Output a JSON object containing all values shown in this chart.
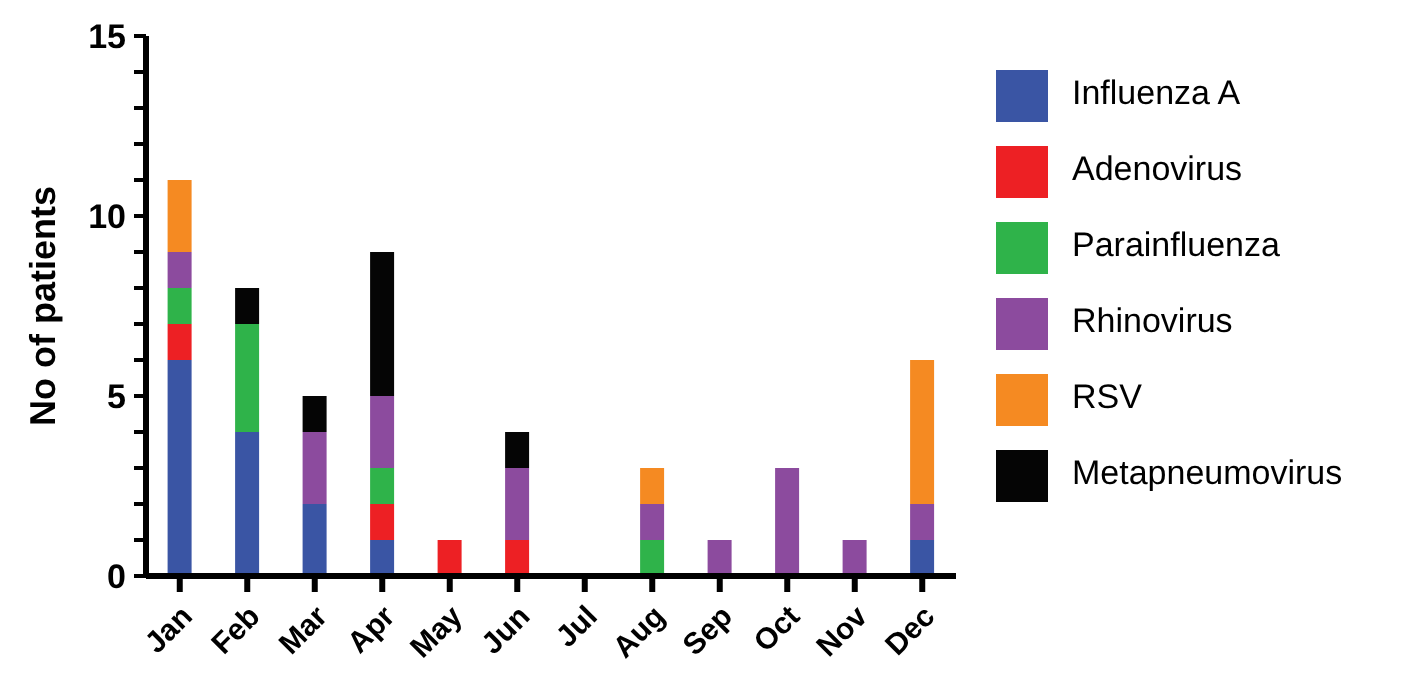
{
  "chart_data": {
    "type": "bar",
    "stacked": true,
    "ylabel": "No of patients",
    "categories": [
      "Jan",
      "Feb",
      "Mar",
      "Apr",
      "May",
      "Jun",
      "Jul",
      "Aug",
      "Sep",
      "Oct",
      "Nov",
      "Dec"
    ],
    "series": [
      {
        "name": "Influenza A",
        "color": "#3a55a4",
        "values": [
          6,
          4,
          2,
          1,
          0,
          0,
          0,
          0,
          0,
          0,
          0,
          1
        ]
      },
      {
        "name": "Adenovirus",
        "color": "#ed2024",
        "values": [
          1,
          0,
          0,
          1,
          1,
          1,
          0,
          0,
          0,
          0,
          0,
          0
        ]
      },
      {
        "name": "Parainfluenza",
        "color": "#2fb34a",
        "values": [
          1,
          3,
          0,
          1,
          0,
          0,
          0,
          1,
          0,
          0,
          0,
          0
        ]
      },
      {
        "name": "Rhinovirus",
        "color": "#8c4b9e",
        "values": [
          1,
          0,
          2,
          2,
          0,
          2,
          0,
          1,
          1,
          3,
          1,
          1
        ]
      },
      {
        "name": "RSV",
        "color": "#f58a22",
        "values": [
          2,
          0,
          0,
          0,
          0,
          0,
          0,
          1,
          0,
          0,
          0,
          4
        ]
      },
      {
        "name": "Metapneumovirus",
        "color": "#050505",
        "values": [
          0,
          1,
          1,
          4,
          0,
          1,
          0,
          0,
          0,
          0,
          0,
          0
        ]
      }
    ],
    "ylim": [
      0,
      15
    ],
    "yticks": [
      0,
      {
        "value": 1,
        "label": null
      },
      {
        "value": 2,
        "label": null
      },
      {
        "value": 3,
        "label": null
      },
      {
        "value": 4,
        "label": null
      },
      5,
      {
        "value": 6,
        "label": null
      },
      {
        "value": 7,
        "label": null
      },
      {
        "value": 8,
        "label": null
      },
      {
        "value": 9,
        "label": null
      },
      10,
      {
        "value": 11,
        "label": null
      },
      {
        "value": 12,
        "label": null
      },
      {
        "value": 13,
        "label": null
      },
      {
        "value": 14,
        "label": null
      },
      15
    ],
    "grid": false,
    "legend": "right"
  }
}
